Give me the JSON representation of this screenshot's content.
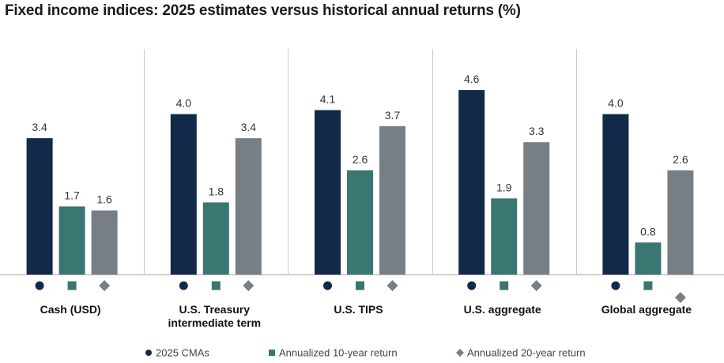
{
  "chart_data": {
    "type": "bar",
    "title": "Fixed income indices: 2025 estimates versus historical annual returns (%)",
    "categories": [
      [
        "Cash (USD)"
      ],
      [
        "U.S. Treasury",
        "intermediate term"
      ],
      [
        "U.S. TIPS"
      ],
      [
        "U.S. aggregate"
      ],
      [
        "Global aggregate"
      ]
    ],
    "series": [
      {
        "name": "2025 CMAs",
        "values": [
          3.4,
          4.0,
          4.1,
          4.6,
          4.0
        ],
        "labels": [
          "3.4",
          "4.0",
          "4.1",
          "4.6",
          "4.0"
        ],
        "color": "#12294a",
        "marker": "circle"
      },
      {
        "name": "Annualized 10-year return",
        "values": [
          1.7,
          1.8,
          2.6,
          1.9,
          0.8
        ],
        "labels": [
          "1.7",
          "1.8",
          "2.6",
          "1.9",
          "0.8"
        ],
        "color": "#3a7772",
        "marker": "square"
      },
      {
        "name": "Annualized 20-year return",
        "values": [
          1.6,
          3.4,
          3.7,
          3.3,
          2.6
        ],
        "labels": [
          "1.6",
          "3.4",
          "3.7",
          "3.3",
          "2.6"
        ],
        "color": "#777f85",
        "marker": "diamond"
      }
    ],
    "ylim": [
      0,
      5.9
    ],
    "legend_position": "bottom",
    "grid": false,
    "separator_color": "#c8c8c8",
    "baseline_color": "#b4b4b4"
  }
}
